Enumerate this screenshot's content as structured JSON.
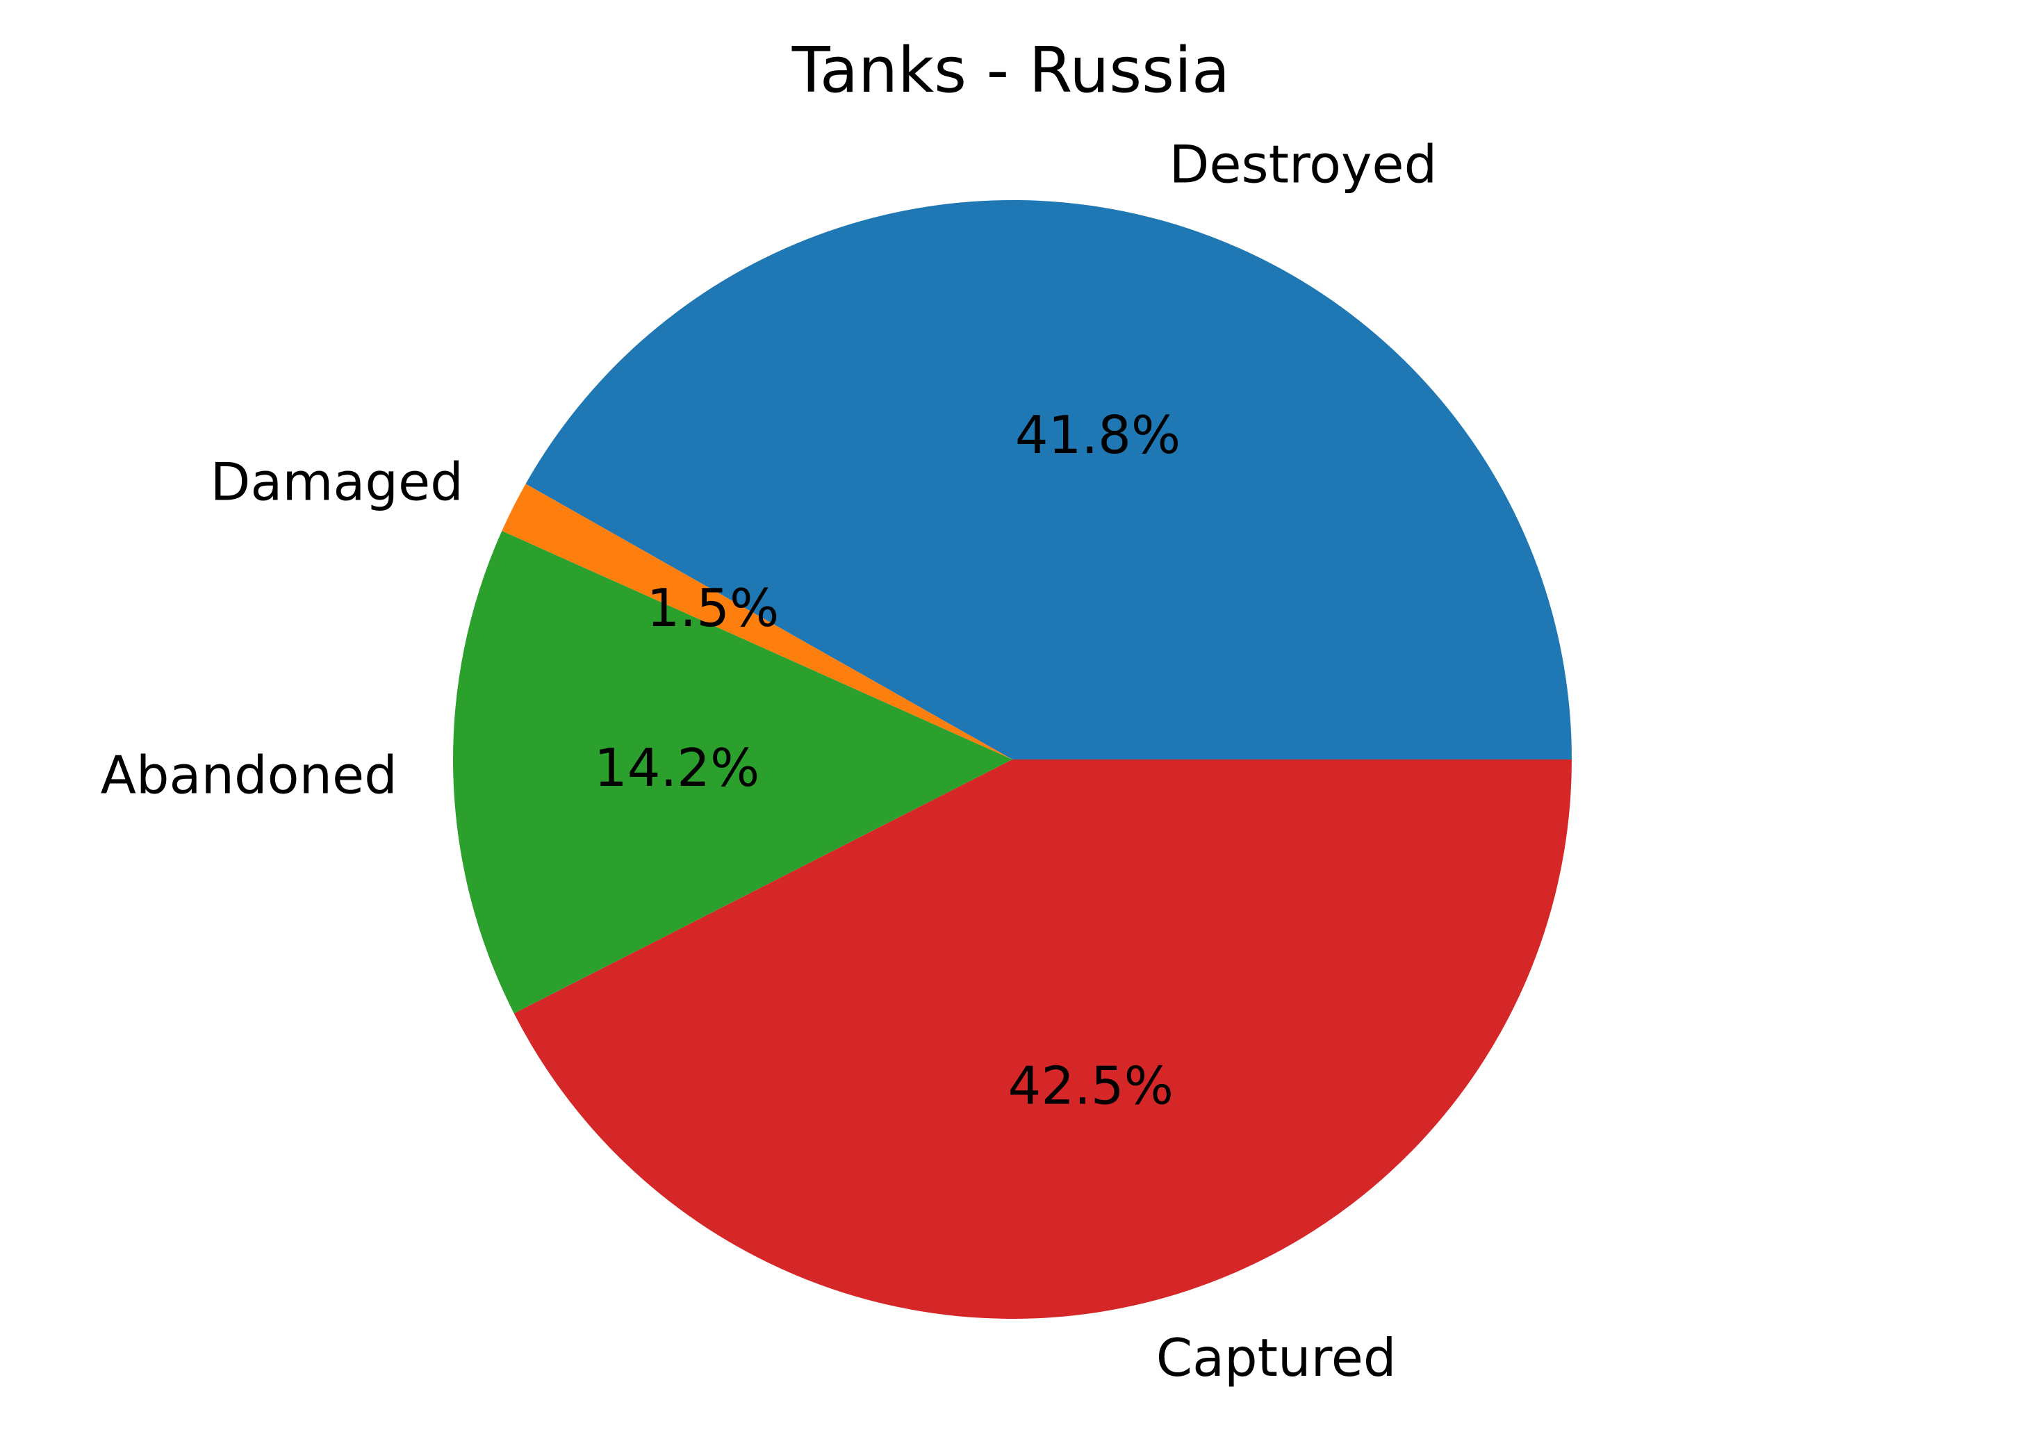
{
  "chart_data": {
    "type": "pie",
    "title": "Tanks - Russia",
    "labels": [
      "Destroyed",
      "Damaged",
      "Abandoned",
      "Captured"
    ],
    "percent_labels": [
      "41.8%",
      "1.5%",
      "14.2%",
      "42.5%"
    ],
    "values": [
      41.8,
      1.5,
      14.2,
      42.5
    ],
    "colors": [
      "#1f77b4",
      "#ff7f0e",
      "#2ca02c",
      "#d62728"
    ],
    "start_angle_deg": 0,
    "direction": "counterclockwise",
    "legend": "none"
  }
}
